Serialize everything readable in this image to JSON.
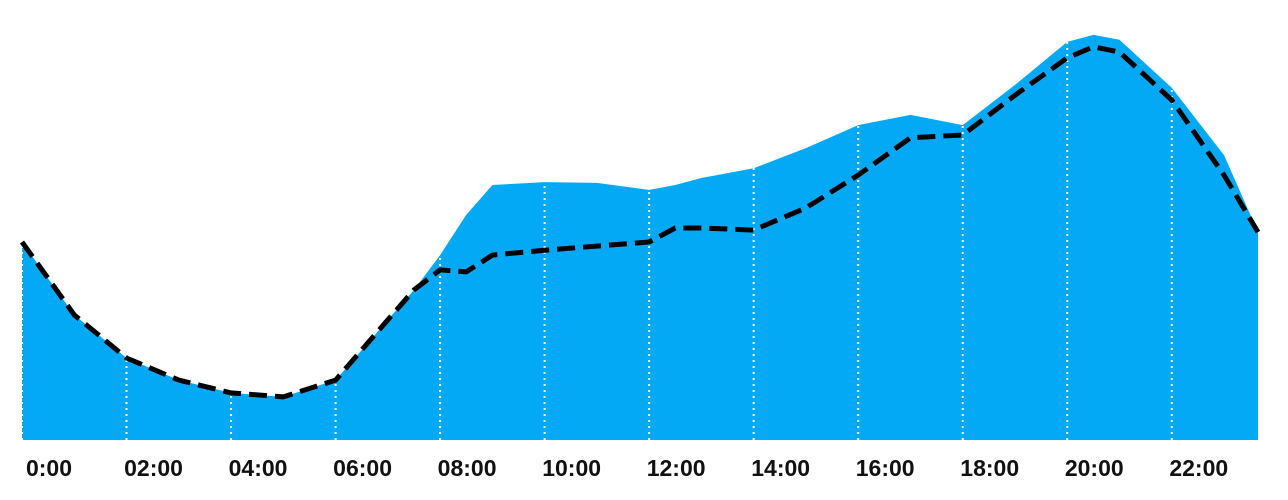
{
  "chart_data": {
    "type": "area-line",
    "x": [
      0,
      1,
      2,
      3,
      4,
      5,
      6,
      7,
      7.5,
      8,
      8.5,
      9,
      10,
      11,
      12,
      12.5,
      13,
      14,
      15,
      16,
      17,
      18,
      19,
      20,
      20.5,
      21,
      22,
      23,
      23.65
    ],
    "series": [
      {
        "color": "#03a9f4",
        "fill": true,
        "values": [
          48.3,
          30.5,
          20,
          14.6,
          11.5,
          10.5,
          14.6,
          29.3,
          36.6,
          45.1,
          54.9,
          62.2,
          62.9,
          62.7,
          61,
          62.2,
          63.9,
          66.3,
          71.2,
          76.8,
          79.3,
          76.8,
          86.6,
          97.1,
          98.8,
          97.6,
          85.9,
          69.5,
          50.7
        ]
      },
      {
        "color": "#000000",
        "dashed": true,
        "values": [
          48.3,
          30.5,
          20,
          14.6,
          11.5,
          10.5,
          14.6,
          29.3,
          36.6,
          41.5,
          41,
          45.1,
          46.3,
          47.3,
          48.3,
          51.7,
          51.7,
          51.2,
          56.6,
          64.6,
          73.7,
          74.4,
          84.1,
          93.2,
          95.9,
          94.6,
          82.9,
          64.6,
          50.7
        ]
      }
    ],
    "xlim": [
      0,
      23.65
    ],
    "xticks": [
      {
        "value": 0,
        "label": "0:00"
      },
      {
        "value": 2,
        "label": "02:00"
      },
      {
        "value": 4,
        "label": "04:00"
      },
      {
        "value": 6,
        "label": "06:00"
      },
      {
        "value": 8,
        "label": "08:00"
      },
      {
        "value": 10,
        "label": "10:00"
      },
      {
        "value": 12,
        "label": "12:00"
      },
      {
        "value": 14,
        "label": "14:00"
      },
      {
        "value": 16,
        "label": "16:00"
      },
      {
        "value": 18,
        "label": "18:00"
      },
      {
        "value": 20,
        "label": "20:00"
      },
      {
        "value": 22,
        "label": "22:00"
      }
    ],
    "ylim": [
      0,
      100
    ],
    "grid": true
  }
}
